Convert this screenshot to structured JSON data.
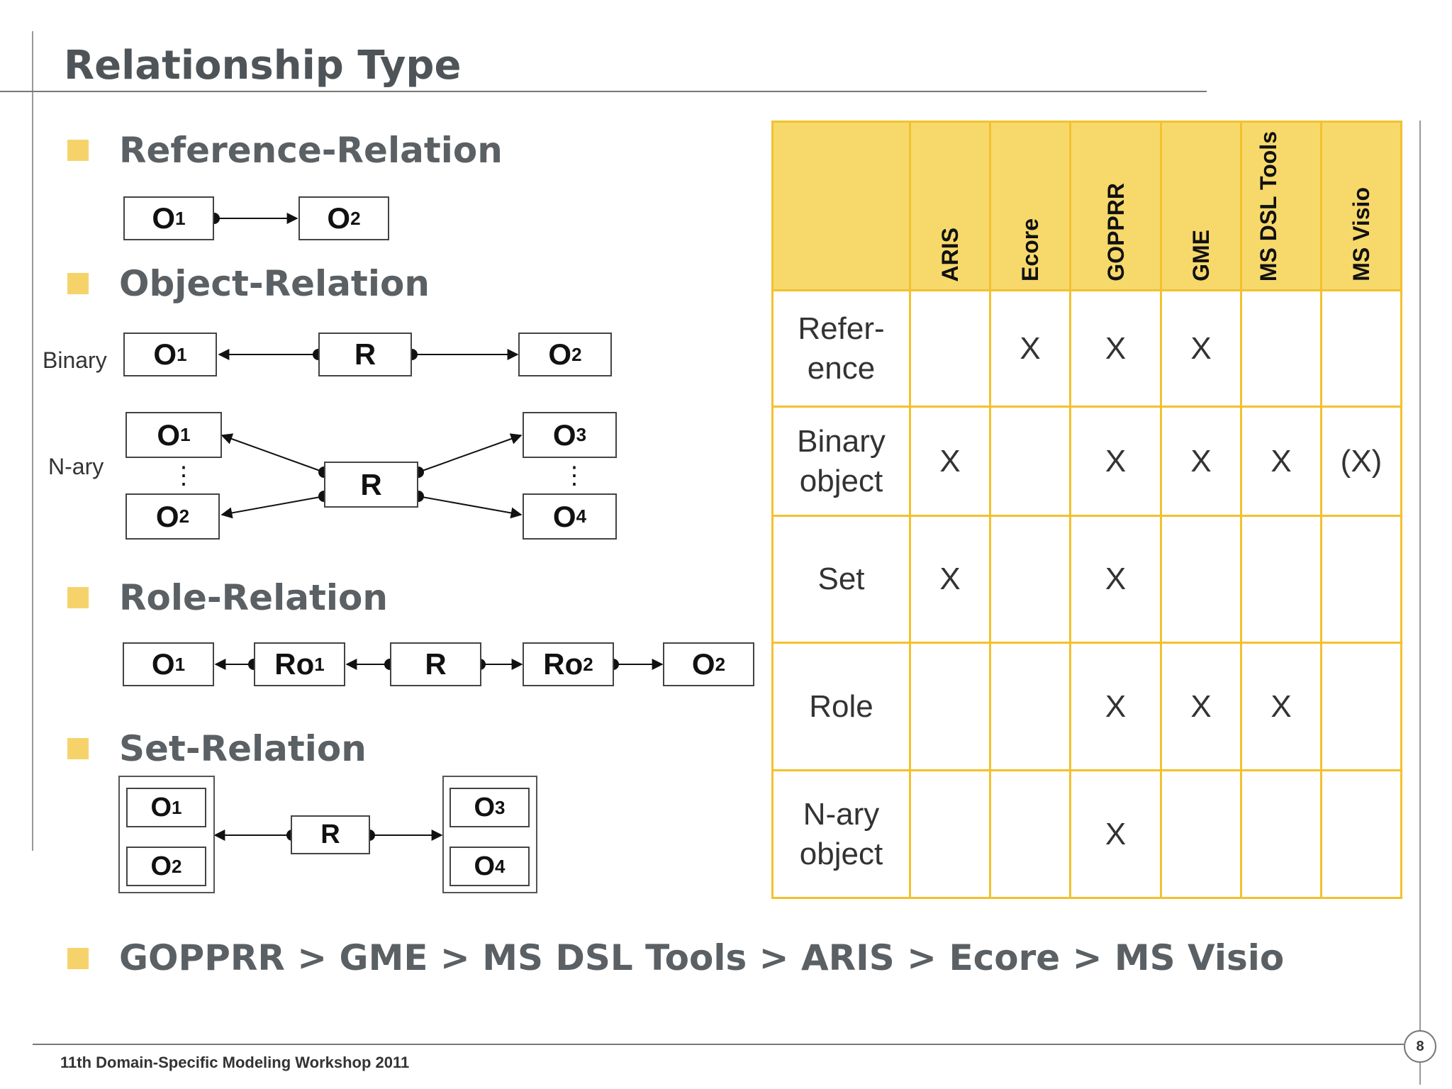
{
  "title": "Relationship Type",
  "sections": {
    "reference": "Reference-Relation",
    "object": "Object-Relation",
    "role": "Role-Relation",
    "set": "Set-Relation"
  },
  "labels": {
    "binary": "Binary",
    "nary": "N-ary"
  },
  "diagram": {
    "o": "O",
    "r": "R",
    "ro": "Ro",
    "sub1": "1",
    "sub2": "2",
    "sub3": "3",
    "sub4": "4",
    "vdots": "⋮"
  },
  "table": {
    "headers": [
      "ARIS",
      "Ecore",
      "GOPPRR",
      "GME",
      "MS DSL Tools",
      "MS Visio"
    ],
    "rows": [
      {
        "label": "Refer-\nence",
        "cells": [
          "",
          "X",
          "X",
          "X",
          "",
          ""
        ]
      },
      {
        "label": "Binary\nobject",
        "cells": [
          "X",
          "",
          "X",
          "X",
          "X",
          "(X)"
        ]
      },
      {
        "label": "Set",
        "cells": [
          "X",
          "",
          "X",
          "",
          "",
          ""
        ]
      },
      {
        "label": "Role",
        "cells": [
          "",
          "",
          "X",
          "X",
          "X",
          ""
        ]
      },
      {
        "label": "N-ary\nobject",
        "cells": [
          "",
          "",
          "X",
          "",
          "",
          ""
        ]
      }
    ]
  },
  "ranking": "GOPPRR > GME > MS DSL Tools > ARIS > Ecore > MS Visio",
  "footer": "11th Domain-Specific Modeling Workshop 2011",
  "page_number": "8",
  "colors": {
    "accent": "#f2c12e",
    "header_fill": "#f7d96b",
    "bullet": "#f6d36a",
    "title": "#4e5457"
  }
}
